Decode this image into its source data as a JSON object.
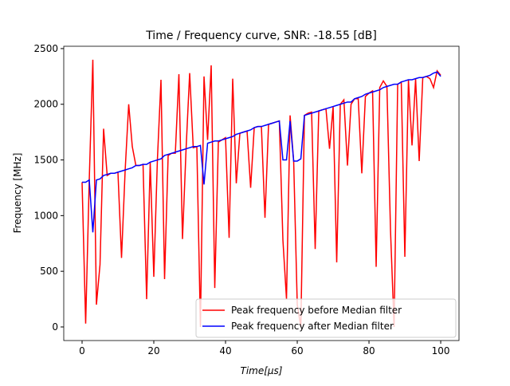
{
  "chart_data": {
    "type": "line",
    "title": "Time / Frequency curve, SNR: -18.55 [dB]",
    "xlabel": "Time[μs]",
    "ylabel": "Frequency [MHz]",
    "x": [
      0,
      1,
      2,
      3,
      4,
      5,
      6,
      7,
      8,
      9,
      10,
      11,
      12,
      13,
      14,
      15,
      16,
      17,
      18,
      19,
      20,
      21,
      22,
      23,
      24,
      25,
      26,
      27,
      28,
      29,
      30,
      31,
      32,
      33,
      34,
      35,
      36,
      37,
      38,
      39,
      40,
      41,
      42,
      43,
      44,
      45,
      46,
      47,
      48,
      49,
      50,
      51,
      52,
      53,
      54,
      55,
      56,
      57,
      58,
      59,
      60,
      61,
      62,
      63,
      64,
      65,
      66,
      67,
      68,
      69,
      70,
      71,
      72,
      73,
      74,
      75,
      76,
      77,
      78,
      79,
      80,
      81,
      82,
      83,
      84,
      85,
      86,
      87,
      88,
      89,
      90,
      91,
      92,
      93,
      94,
      95,
      96,
      97,
      98,
      99,
      100
    ],
    "series": [
      {
        "name": "Peak frequency before Median filter",
        "color": "#ff0000",
        "values": [
          1300,
          30,
          1320,
          2400,
          200,
          560,
          1780,
          1360,
          1380,
          1380,
          1390,
          620,
          1400,
          2000,
          1620,
          1450,
          1450,
          1460,
          250,
          1480,
          450,
          1500,
          2220,
          430,
          1540,
          1560,
          1560,
          2270,
          790,
          1600,
          2280,
          1610,
          1620,
          0,
          2250,
          1680,
          2350,
          350,
          1660,
          1680,
          1700,
          800,
          2230,
          1290,
          1740,
          1750,
          1760,
          1250,
          1790,
          1800,
          1800,
          980,
          1820,
          1830,
          1840,
          1850,
          780,
          250,
          1900,
          1490,
          200,
          0,
          1900,
          1920,
          1930,
          700,
          1940,
          1950,
          1960,
          1600,
          1980,
          580,
          2000,
          2040,
          1450,
          2000,
          2050,
          2050,
          1380,
          2070,
          2100,
          2120,
          540,
          2150,
          2210,
          2160,
          870,
          0,
          2180,
          2200,
          630,
          2220,
          1630,
          2230,
          1490,
          2240,
          2250,
          2230,
          2150,
          2300,
          2260
        ]
      },
      {
        "name": "Peak frequency after Median filter",
        "color": "#0000ff",
        "values": [
          1300,
          1300,
          1320,
          850,
          1320,
          1330,
          1360,
          1370,
          1380,
          1380,
          1390,
          1400,
          1410,
          1420,
          1430,
          1450,
          1450,
          1460,
          1460,
          1480,
          1490,
          1500,
          1510,
          1540,
          1550,
          1560,
          1570,
          1580,
          1590,
          1600,
          1610,
          1620,
          1620,
          1630,
          1280,
          1650,
          1660,
          1670,
          1670,
          1680,
          1690,
          1700,
          1710,
          1730,
          1740,
          1750,
          1760,
          1770,
          1790,
          1800,
          1800,
          1810,
          1820,
          1830,
          1840,
          1850,
          1500,
          1500,
          1850,
          1490,
          1490,
          1510,
          1900,
          1910,
          1920,
          1930,
          1940,
          1950,
          1960,
          1970,
          1980,
          1990,
          2000,
          2010,
          2020,
          2020,
          2050,
          2060,
          2070,
          2090,
          2100,
          2110,
          2120,
          2130,
          2150,
          2160,
          2170,
          2180,
          2180,
          2200,
          2210,
          2220,
          2220,
          2230,
          2240,
          2240,
          2250,
          2260,
          2280,
          2290,
          2250
        ]
      }
    ],
    "xlim": [
      -5.11,
      105.1
    ],
    "ylim": [
      -122,
      2521
    ],
    "xticks": [
      0,
      20,
      40,
      60,
      80,
      100
    ],
    "yticks": [
      0,
      500,
      1000,
      1500,
      2000,
      2500
    ],
    "legend": "lower right"
  }
}
